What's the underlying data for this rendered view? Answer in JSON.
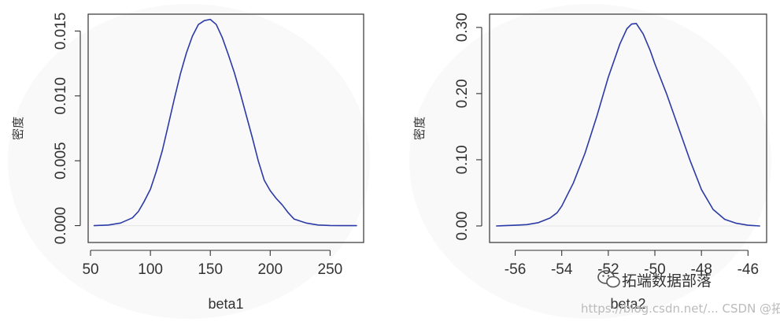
{
  "chart_data": [
    {
      "type": "line",
      "title": "",
      "xlabel": "beta1",
      "ylabel": "密度",
      "xlim": [
        48,
        278
      ],
      "ylim": [
        -0.0013,
        0.0163
      ],
      "xticks": [
        50,
        100,
        150,
        200,
        250
      ],
      "xtick_labels": [
        "50",
        "100",
        "150",
        "200",
        "250"
      ],
      "yticks": [
        0.0,
        0.005,
        0.01,
        0.015
      ],
      "ytick_labels": [
        "0.000",
        "0.005",
        "0.010",
        "0.015"
      ],
      "grid": false,
      "series": [
        {
          "color": "#2b3aa6",
          "x": [
            53,
            65,
            75,
            85,
            90,
            95,
            100,
            105,
            110,
            115,
            120,
            125,
            130,
            135,
            140,
            145,
            150,
            155,
            160,
            165,
            170,
            175,
            180,
            185,
            190,
            195,
            200,
            205,
            210,
            215,
            220,
            230,
            240,
            250,
            260,
            272
          ],
          "y": [
            0.0,
            5e-05,
            0.0002,
            0.0006,
            0.0011,
            0.0019,
            0.0028,
            0.0042,
            0.0058,
            0.0078,
            0.0098,
            0.0117,
            0.0133,
            0.0146,
            0.0155,
            0.0158,
            0.0159,
            0.0155,
            0.0145,
            0.0132,
            0.0118,
            0.0102,
            0.0085,
            0.0068,
            0.005,
            0.0035,
            0.0027,
            0.0021,
            0.0016,
            0.001,
            0.0005,
            0.0002,
            5e-05,
            1e-05,
            0.0,
            0.0
          ]
        }
      ]
    },
    {
      "type": "line",
      "title": "",
      "xlabel": "beta2",
      "ylabel": "密度",
      "xlim": [
        -57.1,
        -45.2
      ],
      "ylim": [
        -0.025,
        0.32
      ],
      "xticks": [
        -56,
        -54,
        -52,
        -50,
        -48,
        -46
      ],
      "xtick_labels": [
        "-56",
        "-54",
        "-52",
        "-50",
        "-48",
        "-46"
      ],
      "yticks": [
        0.0,
        0.1,
        0.2,
        0.3
      ],
      "ytick_labels": [
        "0.00",
        "0.10",
        "0.20",
        "0.30"
      ],
      "grid": false,
      "series": [
        {
          "color": "#2b3aa6",
          "x": [
            -56.8,
            -56.0,
            -55.5,
            -55.0,
            -54.5,
            -54.2,
            -54.0,
            -53.5,
            -53.0,
            -52.5,
            -52.0,
            -51.5,
            -51.2,
            -51.0,
            -50.8,
            -50.5,
            -50.2,
            -50.0,
            -49.5,
            -49.0,
            -48.5,
            -48.0,
            -47.5,
            -47.0,
            -46.5,
            -46.0,
            -45.5
          ],
          "y": [
            0.0,
            0.001,
            0.002,
            0.005,
            0.012,
            0.02,
            0.03,
            0.065,
            0.11,
            0.165,
            0.225,
            0.275,
            0.298,
            0.305,
            0.306,
            0.29,
            0.265,
            0.245,
            0.2,
            0.15,
            0.1,
            0.055,
            0.025,
            0.01,
            0.004,
            0.001,
            0.0
          ]
        }
      ]
    }
  ],
  "watermark": {
    "text_1": "拓端数据部落",
    "text_2": "https://blog.csdn.net/... CSDN @拓端研究室",
    "icon": "wechat-icon"
  }
}
